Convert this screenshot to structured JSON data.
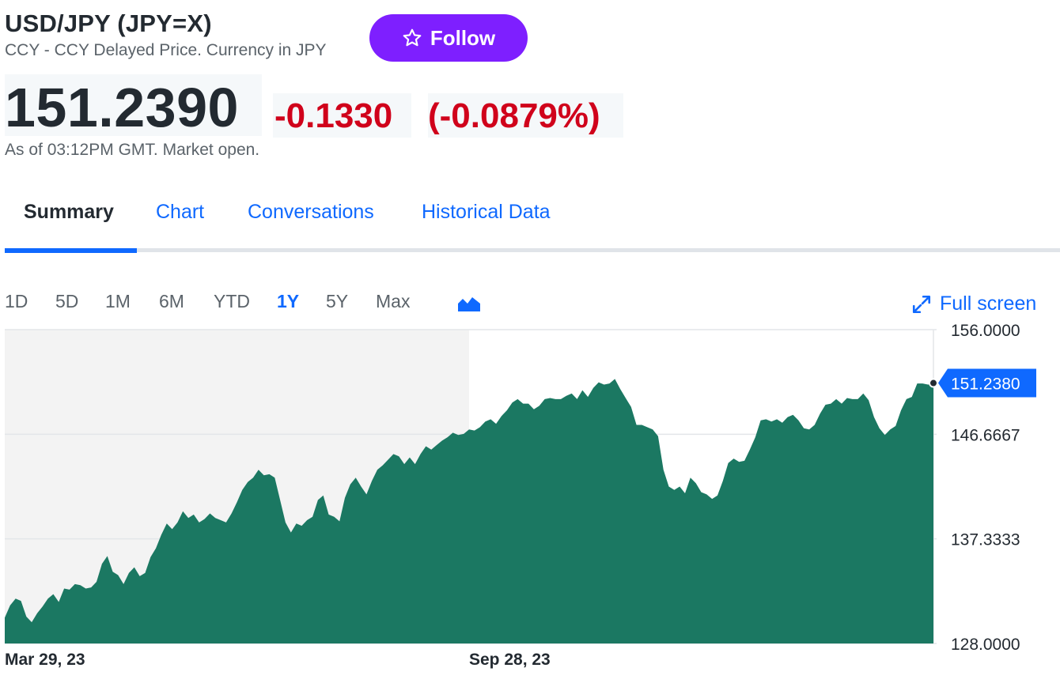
{
  "header": {
    "title": "USD/JPY (JPY=X)",
    "subtitle": "CCY - CCY Delayed Price. Currency in JPY",
    "follow_label": "Follow",
    "price": "151.2390",
    "change": "-0.1330",
    "change_percent": "(-0.0879%)",
    "as_of": "As of 03:12PM GMT. Market open.",
    "negative_color": "#d0021b",
    "follow_color": "#7e1fff"
  },
  "tabs": [
    "Summary",
    "Chart",
    "Conversations",
    "Historical Data"
  ],
  "active_tab": "Summary",
  "ranges": [
    "1D",
    "5D",
    "1M",
    "6M",
    "YTD",
    "1Y",
    "5Y",
    "Max"
  ],
  "active_range": "1Y",
  "fullscreen_label": "Full screen",
  "icons": {
    "follow": "star-icon",
    "chart_type": "mountain-chart-icon",
    "fullscreen": "expand-icon"
  },
  "chart_data": {
    "type": "area",
    "title": "",
    "xlabel": "",
    "ylabel": "",
    "color": "#1b7862",
    "ylim": [
      128.0,
      156.0
    ],
    "y_ticks": [
      "156.0000",
      "146.6667",
      "137.3333",
      "128.0000"
    ],
    "x_tick_labels": [
      "Mar 29, 23",
      "Sep 28, 23"
    ],
    "last_value_label": "151.2380",
    "grid": "horizontal",
    "shaded_region": "first half (Mar 29, 23 to Sep 28, 23)",
    "series": [
      {
        "values": [
          130.3,
          131.4,
          132.0,
          131.8,
          130.4,
          129.9,
          130.7,
          131.3,
          132.0,
          132.4,
          131.7,
          132.9,
          132.8,
          133.3,
          133.2,
          132.9,
          133.0,
          133.5,
          135.1,
          135.8,
          134.4,
          134.1,
          133.3,
          134.3,
          134.8,
          134.0,
          134.3,
          135.7,
          136.5,
          137.7,
          138.7,
          138.2,
          138.8,
          139.8,
          139.2,
          139.5,
          138.8,
          139.1,
          139.6,
          139.2,
          139.0,
          138.8,
          139.6,
          140.6,
          141.7,
          142.4,
          142.8,
          143.5,
          143.0,
          143.1,
          142.8,
          140.8,
          138.8,
          137.9,
          138.7,
          138.5,
          139.0,
          139.3,
          140.8,
          141.2,
          139.5,
          139.3,
          138.9,
          141.0,
          142.2,
          142.8,
          142.0,
          141.3,
          142.5,
          143.5,
          143.9,
          144.4,
          144.9,
          144.7,
          144.0,
          144.6,
          144.0,
          144.9,
          145.6,
          145.3,
          145.7,
          146.1,
          146.4,
          146.8,
          146.6,
          146.7,
          147.1,
          147.0,
          147.3,
          147.8,
          148.0,
          147.6,
          148.3,
          148.8,
          149.5,
          149.8,
          149.4,
          149.4,
          148.9,
          149.2,
          149.8,
          149.9,
          149.8,
          149.8,
          150.1,
          150.3,
          149.8,
          150.6,
          150.0,
          150.8,
          151.3,
          151.1,
          151.2,
          151.6,
          150.7,
          149.9,
          149.1,
          147.5,
          147.5,
          147.3,
          147.1,
          146.5,
          143.5,
          142.0,
          141.7,
          142.0,
          141.4,
          142.8,
          142.3,
          141.5,
          141.3,
          140.9,
          141.2,
          142.5,
          144.1,
          144.5,
          144.2,
          144.3,
          145.3,
          146.4,
          147.9,
          148.0,
          147.8,
          148.0,
          147.7,
          148.2,
          148.4,
          147.9,
          147.2,
          147.1,
          147.5,
          148.5,
          149.3,
          149.4,
          149.8,
          149.4,
          149.9,
          149.8,
          149.8,
          150.3,
          149.7,
          148.2,
          147.2,
          146.6,
          147.1,
          147.4,
          148.8,
          149.8,
          150.0,
          151.2,
          151.2,
          151.1,
          151.2
        ]
      }
    ]
  }
}
